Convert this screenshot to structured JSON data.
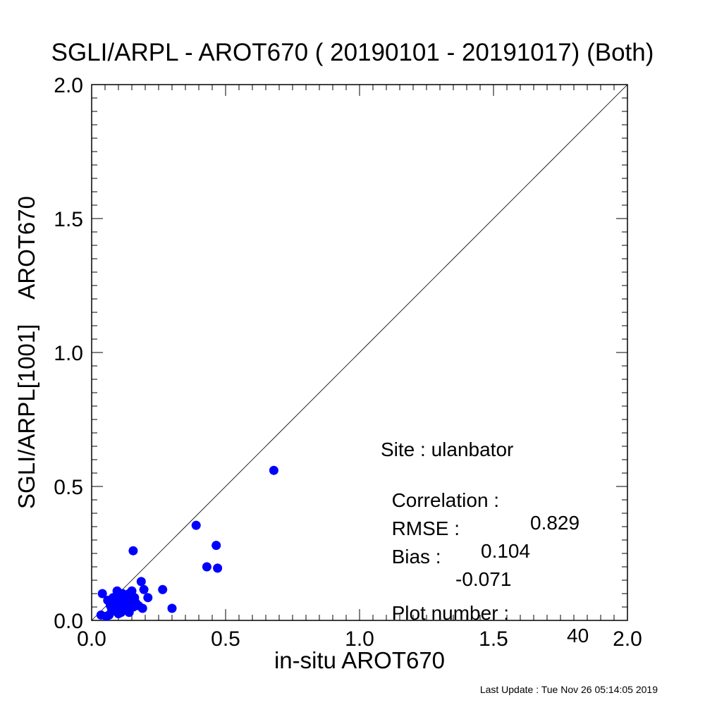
{
  "chart_data": {
    "type": "scatter",
    "title": "SGLI/ARPL - AROT670 ( 20190101 - 20191017) (Both)",
    "xlabel": "in-situ AROT670",
    "ylabel": "SGLI/ARPL[1001]    AROT670",
    "xlim": [
      0.0,
      2.0
    ],
    "ylim": [
      0.0,
      2.0
    ],
    "xticks": [
      "0.0",
      "0.5",
      "1.0",
      "1.5",
      "2.0"
    ],
    "yticks": [
      "0.0",
      "0.5",
      "1.0",
      "1.5",
      "2.0"
    ],
    "grid": false,
    "legend": "none",
    "point_color": "#0000ff",
    "reference_line": "1:1",
    "points": [
      [
        0.68,
        0.56
      ],
      [
        0.39,
        0.355
      ],
      [
        0.465,
        0.28
      ],
      [
        0.43,
        0.2
      ],
      [
        0.47,
        0.195
      ],
      [
        0.155,
        0.26
      ],
      [
        0.185,
        0.145
      ],
      [
        0.195,
        0.115
      ],
      [
        0.21,
        0.085
      ],
      [
        0.265,
        0.115
      ],
      [
        0.3,
        0.045
      ],
      [
        0.04,
        0.1
      ],
      [
        0.035,
        0.02
      ],
      [
        0.06,
        0.075
      ],
      [
        0.07,
        0.055
      ],
      [
        0.075,
        0.04
      ],
      [
        0.08,
        0.085
      ],
      [
        0.09,
        0.065
      ],
      [
        0.095,
        0.11
      ],
      [
        0.1,
        0.08
      ],
      [
        0.105,
        0.05
      ],
      [
        0.11,
        0.03
      ],
      [
        0.115,
        0.1
      ],
      [
        0.12,
        0.07
      ],
      [
        0.125,
        0.045
      ],
      [
        0.13,
        0.09
      ],
      [
        0.135,
        0.06
      ],
      [
        0.14,
        0.03
      ],
      [
        0.145,
        0.075
      ],
      [
        0.15,
        0.11
      ],
      [
        0.155,
        0.05
      ],
      [
        0.16,
        0.085
      ],
      [
        0.165,
        0.065
      ],
      [
        0.175,
        0.055
      ],
      [
        0.19,
        0.045
      ],
      [
        0.055,
        0.015
      ],
      [
        0.065,
        0.02
      ],
      [
        0.085,
        0.035
      ],
      [
        0.1,
        0.025
      ],
      [
        0.14,
        0.1
      ]
    ]
  },
  "annotations": {
    "site": "Site : ulanbator",
    "correlation_label": "Correlation :",
    "correlation_value": "0.829",
    "rmse_label": "RMSE :",
    "rmse_value": "0.104",
    "bias_label": "Bias :",
    "bias_value": "-0.071",
    "plot_number_label": "Plot number :",
    "plot_number_value": "40"
  },
  "footer": "Last Update : Tue Nov 26 05:14:05 2019"
}
